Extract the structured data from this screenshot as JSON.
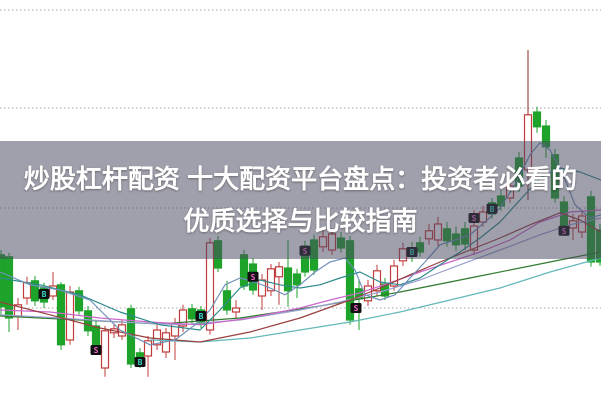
{
  "headline": {
    "line1": "炒股杠杆配资 十大配资平台盘点：投资者必看的",
    "line2": "优质选择与比较指南",
    "text_color": "#ffffff",
    "overlay_color": "rgba(73,73,95,0.52)"
  },
  "chart_data": {
    "type": "candlestick",
    "title": "",
    "xlabel": "",
    "ylabel": "",
    "xlim": [
      0,
      601
    ],
    "ylim": [
      0,
      100
    ],
    "grid": "horizontal-dotted",
    "gridline_levels": [
      97.5,
      73.0,
      48.0,
      23.0
    ],
    "grid_color": "#a8a8a8",
    "up_color": "#c23b3b",
    "down_color": "#1ea32b",
    "big_wick_color": "#8b2a2a",
    "candles": {
      "columns": [
        "x",
        "open",
        "high",
        "low",
        "close"
      ],
      "rows": [
        [
          1,
          36.3,
          37.5,
          21.3,
          23.3
        ],
        [
          9,
          35.8,
          36.8,
          17.0,
          20.5
        ],
        [
          18,
          21.0,
          25.5,
          17.5,
          23.8
        ],
        [
          27,
          25.5,
          30.8,
          23.8,
          29.3
        ],
        [
          35,
          29.8,
          31.0,
          23.5,
          24.8
        ],
        [
          44,
          28.0,
          29.3,
          23.0,
          24.5
        ],
        [
          53,
          26.0,
          32.0,
          25.0,
          28.5
        ],
        [
          61,
          28.8,
          29.5,
          12.5,
          13.8
        ],
        [
          70,
          15.0,
          28.5,
          13.8,
          27.0
        ],
        [
          79,
          27.3,
          28.3,
          21.3,
          22.3
        ],
        [
          88,
          22.3,
          23.5,
          16.0,
          17.3
        ],
        [
          96,
          18.5,
          20.0,
          12.0,
          12.8
        ],
        [
          105,
          8.0,
          18.5,
          5.8,
          17.3
        ],
        [
          114,
          16.8,
          19.0,
          15.5,
          17.8
        ],
        [
          122,
          16.0,
          20.0,
          15.0,
          18.8
        ],
        [
          131,
          22.8,
          23.8,
          8.0,
          9.0
        ],
        [
          140,
          11.8,
          13.0,
          8.0,
          10.0
        ],
        [
          148,
          11.0,
          16.0,
          5.8,
          14.8
        ],
        [
          157,
          13.8,
          18.8,
          12.5,
          17.5
        ],
        [
          166,
          12.0,
          18.0,
          10.5,
          16.8
        ],
        [
          175,
          16.0,
          20.5,
          10.0,
          19.0
        ],
        [
          183,
          18.5,
          23.8,
          17.0,
          22.5
        ],
        [
          192,
          22.8,
          24.0,
          19.0,
          20.3
        ],
        [
          201,
          22.5,
          23.5,
          18.0,
          19.0
        ],
        [
          210,
          17.5,
          40.5,
          16.3,
          39.3
        ],
        [
          218,
          39.8,
          41.0,
          32.0,
          33.0
        ],
        [
          227,
          27.3,
          29.8,
          21.3,
          22.5
        ],
        [
          236,
          22.0,
          25.0,
          20.5,
          23.0
        ],
        [
          244,
          36.3,
          37.5,
          27.5,
          28.5
        ],
        [
          253,
          34.0,
          35.5,
          26.3,
          27.5
        ],
        [
          262,
          26.0,
          31.5,
          22.5,
          30.0
        ],
        [
          271,
          27.3,
          34.0,
          26.0,
          32.8
        ],
        [
          279,
          30.8,
          34.5,
          23.8,
          33.3
        ],
        [
          288,
          33.0,
          40.0,
          23.3,
          27.3
        ],
        [
          297,
          31.5,
          32.8,
          25.5,
          28.8
        ],
        [
          305,
          38.5,
          39.8,
          30.8,
          32.0
        ],
        [
          314,
          40.0,
          41.3,
          31.3,
          32.5
        ],
        [
          323,
          38.3,
          42.5,
          37.0,
          40.8
        ],
        [
          332,
          37.5,
          43.0,
          36.3,
          41.5
        ],
        [
          341,
          40.5,
          42.0,
          36.8,
          38.0
        ],
        [
          350,
          39.8,
          41.0,
          18.8,
          20.0
        ],
        [
          359,
          27.8,
          30.0,
          17.5,
          25.3
        ],
        [
          368,
          24.8,
          30.0,
          23.5,
          28.5
        ],
        [
          377,
          27.3,
          33.8,
          26.0,
          32.3
        ],
        [
          385,
          29.0,
          30.5,
          25.0,
          26.0
        ],
        [
          394,
          28.5,
          35.0,
          27.3,
          33.5
        ],
        [
          403,
          34.8,
          39.3,
          33.5,
          37.8
        ],
        [
          412,
          38.0,
          39.5,
          34.5,
          36.0
        ],
        [
          420,
          39.3,
          40.8,
          35.8,
          37.0
        ],
        [
          429,
          40.3,
          44.0,
          38.8,
          42.3
        ],
        [
          438,
          40.0,
          45.8,
          38.5,
          44.0
        ],
        [
          447,
          42.8,
          44.5,
          38.3,
          39.8
        ],
        [
          456,
          41.5,
          43.3,
          37.3,
          38.8
        ],
        [
          465,
          42.8,
          44.5,
          37.5,
          39.0
        ],
        [
          474,
          37.5,
          47.5,
          36.3,
          43.5
        ],
        [
          483,
          44.5,
          48.5,
          43.3,
          47.0
        ],
        [
          492,
          49.3,
          50.5,
          45.3,
          46.5
        ],
        [
          501,
          51.0,
          52.5,
          47.3,
          48.5
        ],
        [
          510,
          50.5,
          55.0,
          49.3,
          53.5
        ],
        [
          519,
          60.5,
          62.0,
          52.0,
          53.5
        ],
        [
          528,
          57.5,
          87.5,
          50.0,
          71.3
        ],
        [
          537,
          72.0,
          73.3,
          66.8,
          68.3
        ],
        [
          546,
          68.5,
          70.0,
          60.5,
          63.3
        ],
        [
          555,
          61.3,
          62.8,
          49.3,
          50.5
        ],
        [
          564,
          49.5,
          51.0,
          41.8,
          43.0
        ],
        [
          573,
          43.0,
          46.5,
          40.0,
          44.8
        ],
        [
          582,
          42.0,
          47.5,
          40.5,
          46.0
        ],
        [
          591,
          50.8,
          52.3,
          33.3,
          34.5
        ],
        [
          600,
          42.5,
          44.0,
          33.5,
          34.5
        ]
      ]
    },
    "ma_series": [
      {
        "name": "ma-light-cyan",
        "color": "#63b8b8",
        "points": [
          [
            150,
            15.0
          ],
          [
            200,
            14.5
          ],
          [
            250,
            15.5
          ],
          [
            300,
            17.5
          ],
          [
            350,
            19.5
          ],
          [
            400,
            22.0
          ],
          [
            450,
            25.0
          ],
          [
            500,
            28.0
          ],
          [
            550,
            32.0
          ],
          [
            601,
            35.5
          ]
        ]
      },
      {
        "name": "ma-dark-green",
        "color": "#2f7a2f",
        "points": [
          [
            0,
            21.0
          ],
          [
            80,
            20.0
          ],
          [
            160,
            19.0
          ],
          [
            240,
            20.5
          ],
          [
            320,
            23.5
          ],
          [
            400,
            27.0
          ],
          [
            480,
            31.0
          ],
          [
            560,
            35.0
          ],
          [
            601,
            37.0
          ]
        ]
      },
      {
        "name": "ma-lavender",
        "color": "#9aa0d0",
        "points": [
          [
            0,
            21.3
          ],
          [
            60,
            20.5
          ],
          [
            120,
            19.5
          ],
          [
            180,
            18.8
          ],
          [
            240,
            20.0
          ],
          [
            300,
            22.5
          ],
          [
            340,
            24.5
          ],
          [
            380,
            27.0
          ],
          [
            420,
            30.0
          ],
          [
            460,
            33.8
          ],
          [
            500,
            37.5
          ],
          [
            540,
            41.3
          ],
          [
            570,
            43.8
          ],
          [
            601,
            45.5
          ]
        ]
      },
      {
        "name": "ma-magenta",
        "color": "#cc66cc",
        "points": [
          [
            0,
            22.5
          ],
          [
            50,
            22.0
          ],
          [
            100,
            20.5
          ],
          [
            150,
            19.5
          ],
          [
            200,
            18.8
          ],
          [
            250,
            20.5
          ],
          [
            300,
            23.0
          ],
          [
            330,
            25.0
          ],
          [
            360,
            26.8
          ],
          [
            390,
            29.3
          ],
          [
            420,
            32.0
          ],
          [
            450,
            34.5
          ],
          [
            480,
            37.0
          ],
          [
            510,
            40.0
          ],
          [
            540,
            44.5
          ],
          [
            570,
            47.0
          ],
          [
            601,
            47.5
          ]
        ]
      },
      {
        "name": "ma-maroon",
        "color": "#994040",
        "points": [
          [
            0,
            24.5
          ],
          [
            50,
            21.3
          ],
          [
            100,
            18.0
          ],
          [
            150,
            15.5
          ],
          [
            200,
            14.5
          ],
          [
            250,
            17.0
          ],
          [
            300,
            20.5
          ],
          [
            350,
            25.0
          ],
          [
            380,
            28.0
          ],
          [
            410,
            31.3
          ],
          [
            440,
            34.5
          ],
          [
            470,
            37.5
          ],
          [
            500,
            40.5
          ],
          [
            530,
            43.8
          ],
          [
            560,
            46.8
          ],
          [
            580,
            45.0
          ],
          [
            601,
            42.0
          ]
        ]
      },
      {
        "name": "ma-teal",
        "color": "#2e8b8b",
        "points": [
          [
            0,
            30.5
          ],
          [
            40,
            28.8
          ],
          [
            80,
            26.3
          ],
          [
            120,
            22.0
          ],
          [
            160,
            18.8
          ],
          [
            200,
            17.5
          ],
          [
            220,
            22.5
          ],
          [
            240,
            28.0
          ],
          [
            260,
            30.0
          ],
          [
            280,
            28.8
          ],
          [
            300,
            28.0
          ],
          [
            320,
            28.8
          ],
          [
            340,
            30.5
          ],
          [
            360,
            32.0
          ],
          [
            380,
            29.5
          ],
          [
            400,
            28.8
          ],
          [
            420,
            30.5
          ],
          [
            440,
            33.8
          ],
          [
            460,
            37.0
          ],
          [
            480,
            40.5
          ],
          [
            500,
            44.5
          ],
          [
            520,
            50.0
          ],
          [
            540,
            55.5
          ],
          [
            560,
            58.0
          ],
          [
            580,
            57.0
          ],
          [
            601,
            55.0
          ]
        ]
      },
      {
        "name": "ma-steel-blue",
        "color": "#7090b8",
        "points": [
          [
            0,
            32.0
          ],
          [
            30,
            28.8
          ],
          [
            60,
            27.5
          ],
          [
            90,
            25.0
          ],
          [
            120,
            17.5
          ],
          [
            150,
            13.8
          ],
          [
            175,
            15.0
          ],
          [
            195,
            18.8
          ],
          [
            210,
            22.5
          ],
          [
            225,
            28.8
          ],
          [
            240,
            30.5
          ],
          [
            255,
            29.5
          ],
          [
            270,
            28.0
          ],
          [
            285,
            26.3
          ],
          [
            300,
            28.8
          ],
          [
            315,
            32.0
          ],
          [
            330,
            34.5
          ],
          [
            345,
            35.5
          ],
          [
            355,
            32.5
          ],
          [
            365,
            26.3
          ],
          [
            380,
            25.0
          ],
          [
            395,
            26.3
          ],
          [
            410,
            30.5
          ],
          [
            425,
            34.5
          ],
          [
            440,
            38.8
          ],
          [
            455,
            40.0
          ],
          [
            470,
            41.3
          ],
          [
            485,
            44.5
          ],
          [
            500,
            48.0
          ],
          [
            515,
            53.8
          ],
          [
            530,
            61.3
          ],
          [
            540,
            64.3
          ],
          [
            550,
            62.5
          ],
          [
            562,
            57.0
          ],
          [
            575,
            48.8
          ],
          [
            590,
            45.5
          ],
          [
            601,
            46.3
          ]
        ]
      }
    ],
    "signal_markers": {
      "columns": [
        "x",
        "price",
        "label"
      ],
      "box_color": "#101010",
      "buy_color": "#3ad6c8",
      "sell_color": "#f06ac8",
      "rows": [
        [
          44,
          26.5,
          "B"
        ],
        [
          96,
          12.5,
          "S"
        ],
        [
          140,
          9.5,
          "B"
        ],
        [
          201,
          21.0,
          "B"
        ],
        [
          253,
          30.8,
          "S"
        ],
        [
          305,
          37.3,
          "S"
        ],
        [
          356,
          23.0,
          "S"
        ],
        [
          412,
          37.0,
          "B"
        ],
        [
          474,
          45.5,
          "S"
        ],
        [
          492,
          47.8,
          "B"
        ],
        [
          564,
          42.3,
          "S"
        ]
      ]
    }
  }
}
